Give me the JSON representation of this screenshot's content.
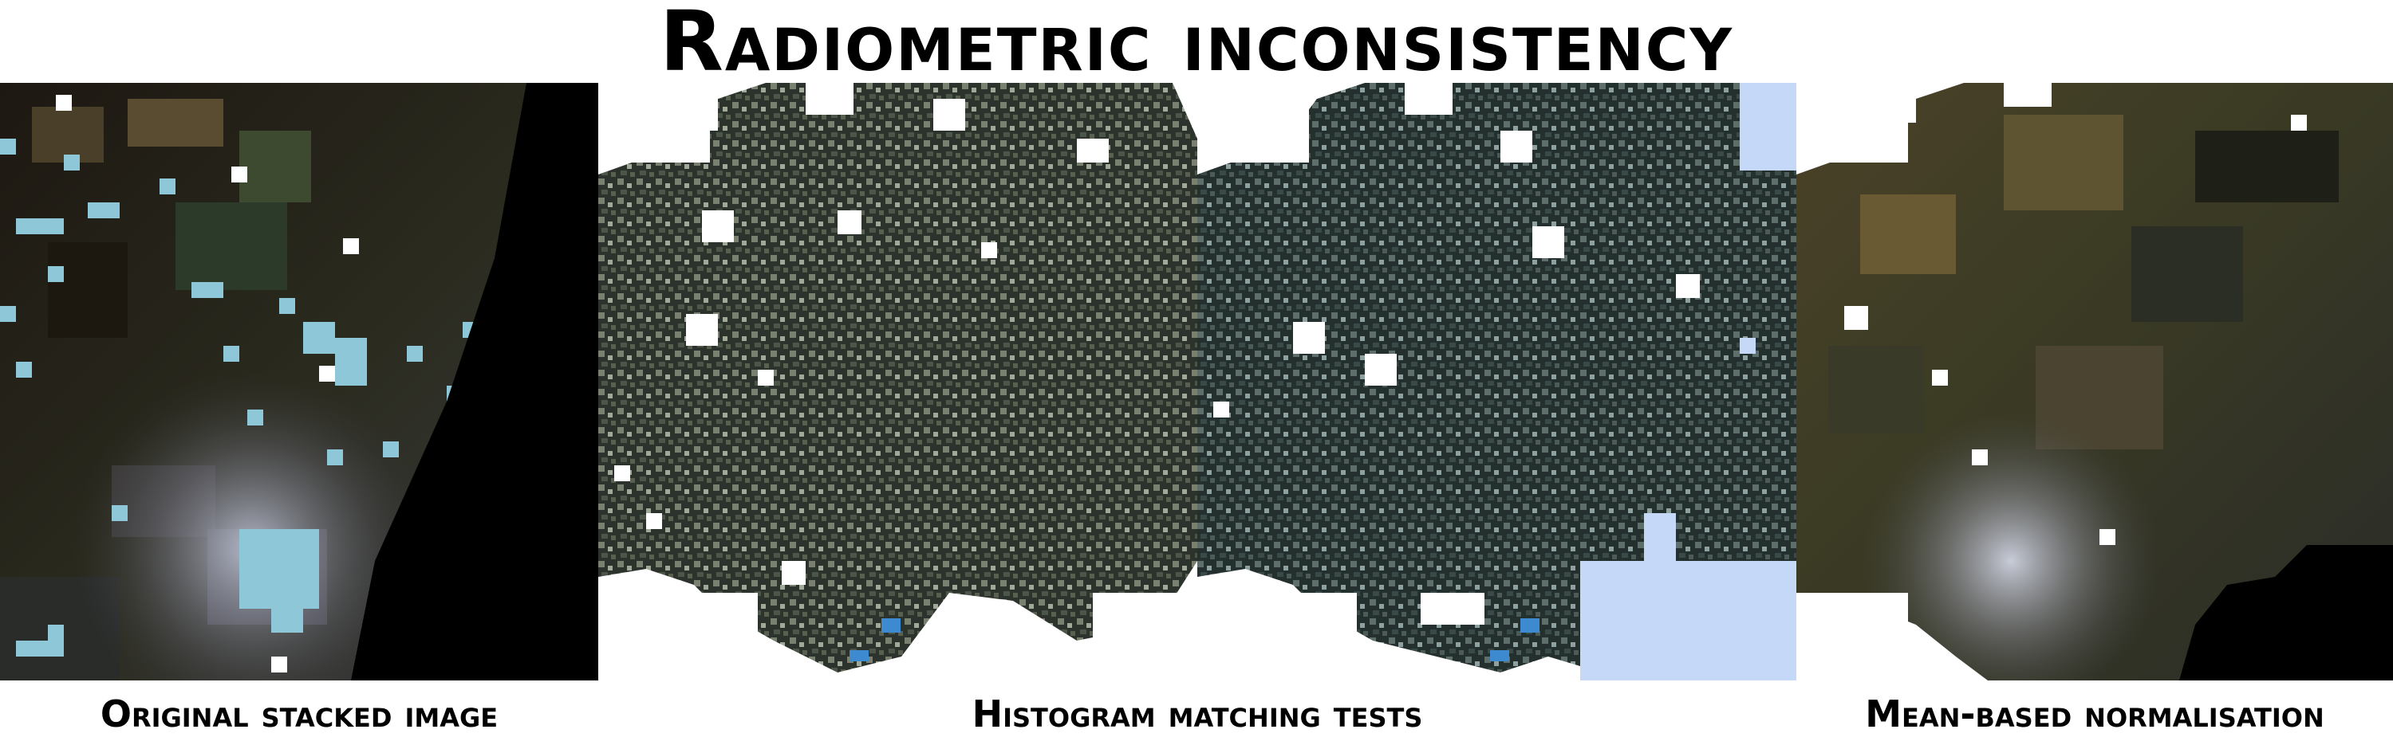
{
  "title": "Radiometric inconsistency",
  "captions": {
    "original": "Original stacked image",
    "histogram": "Histogram matching tests",
    "mean": "Mean-based normalisation"
  },
  "colors": {
    "background": "#ffffff",
    "text": "#000000",
    "cloud_mask_cyan": "#8ec8d8",
    "cloud_mask_blue": "#c6d8f8",
    "no_data": "#000000"
  }
}
